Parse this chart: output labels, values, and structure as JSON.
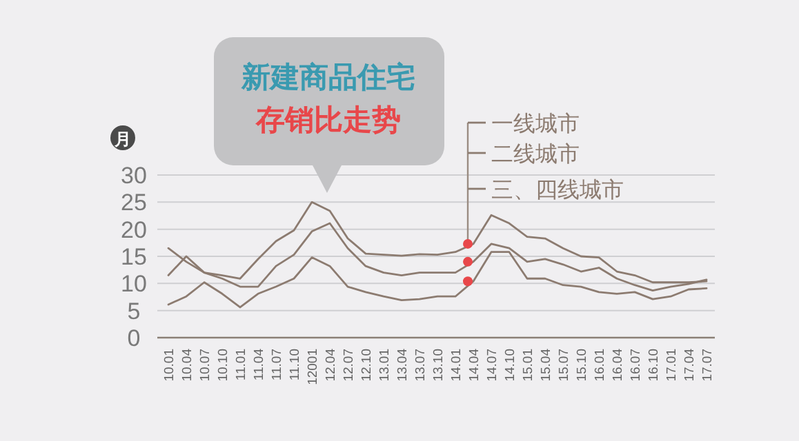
{
  "chart_data": {
    "type": "line",
    "title": "新建商品住宅",
    "subtitle": "存销比走势",
    "ylabel": "月",
    "categories": [
      "10.01",
      "10.04",
      "10.07",
      "10.10",
      "11.01",
      "11.04",
      "11.07",
      "11.10",
      "12001",
      "12.04",
      "12.07",
      "12.10",
      "13.01",
      "13.04",
      "13.07",
      "13.10",
      "14.01",
      "14.04",
      "14.07",
      "14.10",
      "15.01",
      "15.04",
      "15.07",
      "15.10",
      "16.01",
      "16.04",
      "16.07",
      "16.10",
      "17.01",
      "17.04",
      "17.07"
    ],
    "ylim": [
      0,
      30
    ],
    "yticks": [
      0,
      5,
      10,
      15,
      20,
      25,
      30
    ],
    "grid": "y",
    "legend": "top right",
    "line_style": "solid",
    "series": [
      {
        "name": "一线城市",
        "color": "#8c7b70",
        "values": [
          16.5,
          14,
          12,
          11.5,
          10.9,
          14.5,
          17.8,
          19.8,
          25,
          23.4,
          18.3,
          15.5,
          15.3,
          15.1,
          15.4,
          15.3,
          15.8,
          17.3,
          22.6,
          21.1,
          18.6,
          18.3,
          16.5,
          15,
          14.8,
          12.2,
          11.5,
          10.2,
          10.2,
          10.2,
          10.4
        ]
      },
      {
        "name": "二线城市",
        "color": "#8c7b70",
        "values": [
          11.5,
          15,
          12,
          10.9,
          9.4,
          9.4,
          13.2,
          15.3,
          19.6,
          21.1,
          16.5,
          13.2,
          12,
          11.5,
          12,
          12,
          12,
          14,
          17.3,
          16.5,
          14,
          14.5,
          13.5,
          12.2,
          12.9,
          10.9,
          9.7,
          8.7,
          9.4,
          9.9,
          10.7
        ]
      },
      {
        "name": "三、四线城市",
        "color": "#8c7b70",
        "values": [
          6.1,
          7.6,
          10.2,
          8.1,
          5.6,
          8.1,
          9.4,
          10.9,
          14.8,
          13.2,
          9.4,
          8.4,
          7.6,
          6.9,
          7.1,
          7.6,
          7.6,
          10.4,
          15.8,
          15.8,
          10.9,
          10.9,
          9.7,
          9.4,
          8.4,
          8.1,
          8.4,
          7.1,
          7.6,
          8.9,
          9.1
        ]
      }
    ]
  }
}
